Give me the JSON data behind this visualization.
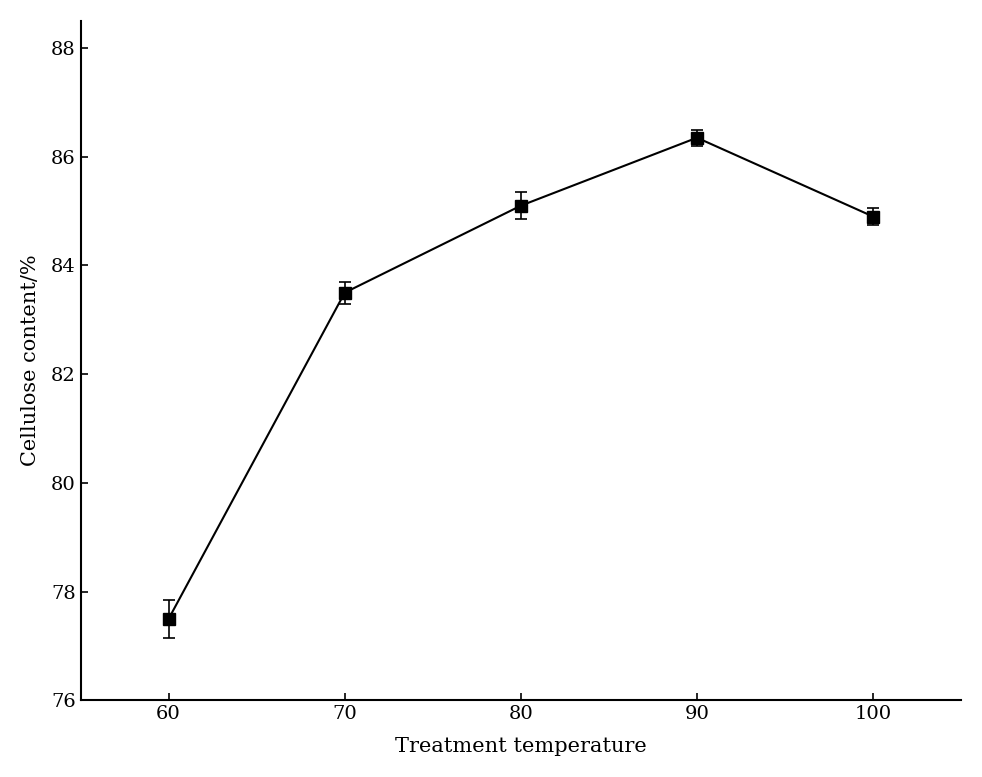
{
  "x": [
    60,
    70,
    80,
    90,
    100
  ],
  "y": [
    77.5,
    83.5,
    85.1,
    86.35,
    84.9
  ],
  "yerr": [
    0.35,
    0.2,
    0.25,
    0.15,
    0.15
  ],
  "xlabel": "Treatment temperature",
  "ylabel": "Cellulose content/%",
  "xlim": [
    55,
    105
  ],
  "ylim": [
    76,
    88.5
  ],
  "xticks": [
    60,
    70,
    80,
    90,
    100
  ],
  "yticks": [
    76,
    78,
    80,
    82,
    84,
    86,
    88
  ],
  "line_color": "#000000",
  "marker": "s",
  "marker_color": "#000000",
  "marker_size": 8,
  "line_width": 1.5,
  "xlabel_fontsize": 15,
  "ylabel_fontsize": 15,
  "tick_fontsize": 14,
  "background_color": "#ffffff",
  "font_family": "serif"
}
